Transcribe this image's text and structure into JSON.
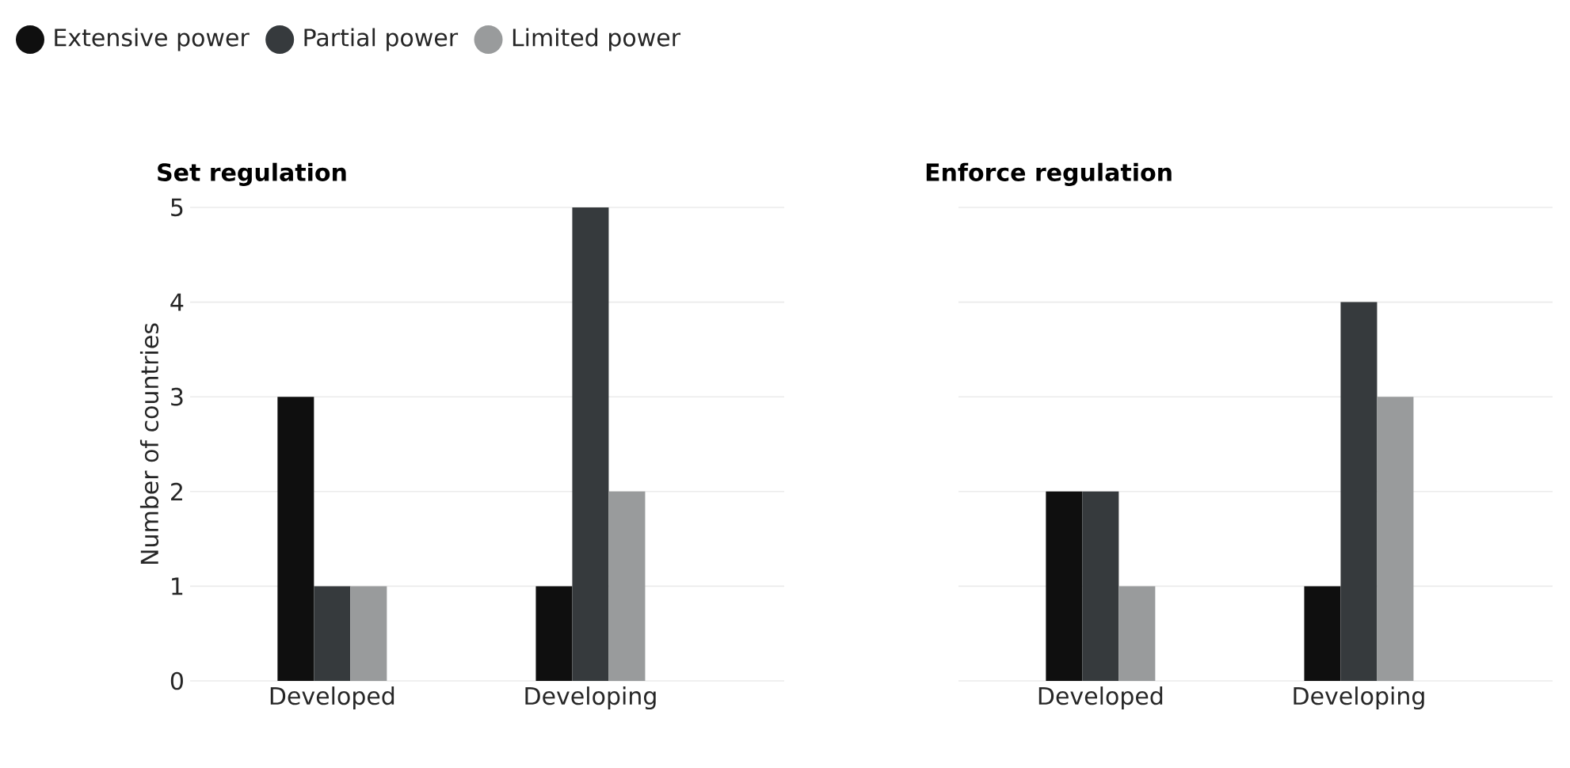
{
  "chart_data": [
    {
      "type": "bar",
      "title": "Set regulation",
      "ylabel": "Number of countries",
      "categories": [
        "Developed",
        "Developing"
      ],
      "ylim": [
        0,
        5
      ],
      "yticks": [
        0,
        1,
        2,
        3,
        4,
        5
      ],
      "grid": "y",
      "legend": "top left",
      "series": [
        {
          "name": "Extensive power",
          "color": "#0f0f0f",
          "values": [
            3,
            1
          ]
        },
        {
          "name": "Partial power",
          "color": "#363a3d",
          "values": [
            1,
            5
          ]
        },
        {
          "name": "Limited power",
          "color": "#999b9c",
          "values": [
            1,
            2
          ]
        }
      ]
    },
    {
      "type": "bar",
      "title": "Enforce regulation",
      "categories": [
        "Developed",
        "Developing"
      ],
      "ylim": [
        0,
        5
      ],
      "yticks": [
        0,
        1,
        2,
        3,
        4,
        5
      ],
      "grid": "y",
      "tick_labels": "x",
      "series": [
        {
          "color": "#0f0f0f",
          "values": [
            2,
            1
          ]
        },
        {
          "color": "#363a3d",
          "values": [
            2,
            4
          ]
        },
        {
          "color": "#999b9c",
          "values": [
            1,
            3
          ]
        }
      ]
    }
  ]
}
